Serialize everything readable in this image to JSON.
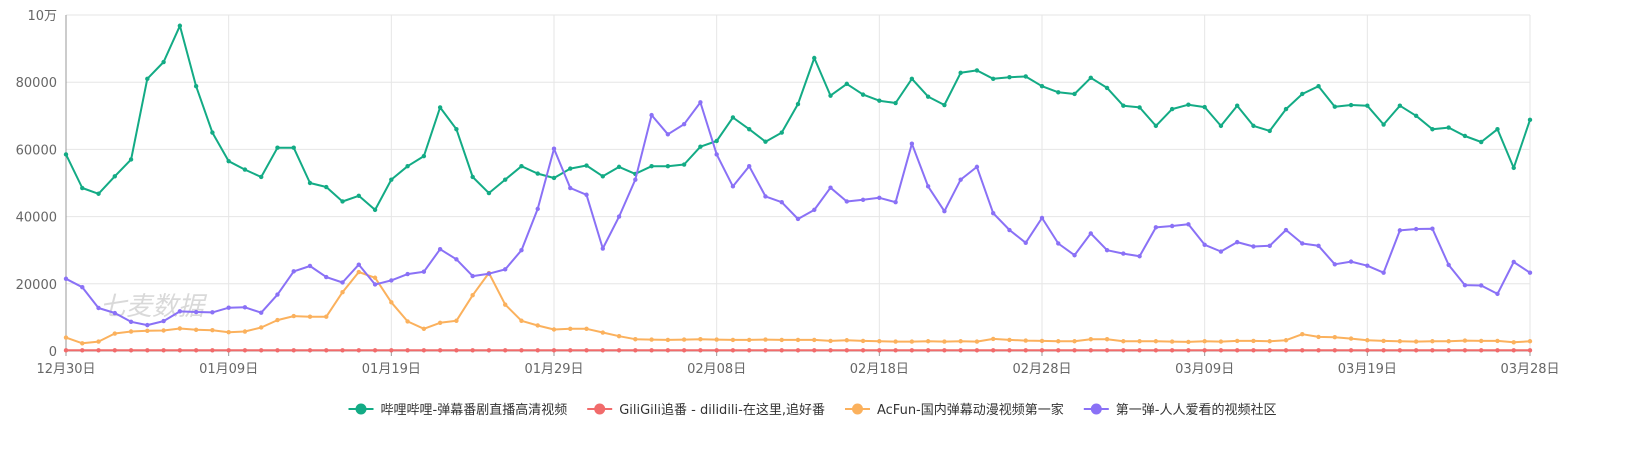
{
  "chart_data": {
    "type": "line",
    "ylim": [
      0,
      100000
    ],
    "y_ticks": [
      0,
      20000,
      40000,
      60000,
      80000
    ],
    "y_top_label": "10万",
    "x_tick_labels": [
      "12月30日",
      "01月09日",
      "01月19日",
      "01月29日",
      "02月08日",
      "02月18日",
      "02月28日",
      "03月09日",
      "03月19日",
      "03月28日"
    ],
    "grid": true,
    "legend_position": "bottom",
    "watermark": "七麦数据",
    "series": [
      {
        "name": "哔哩哔哩-弹幕番剧直播高清视频",
        "color": "#13ab85",
        "values": [
          58500,
          48500,
          46800,
          52000,
          57000,
          81000,
          86000,
          96800,
          78800,
          65000,
          56500,
          54000,
          51800,
          60500,
          60500,
          50000,
          48800,
          44500,
          46200,
          42000,
          51000,
          55000,
          58000,
          72500,
          66000,
          51800,
          47000,
          51000,
          55000,
          52800,
          51500,
          54300,
          55200,
          52000,
          54800,
          52700,
          55000,
          55000,
          55500,
          60800,
          62500,
          69500,
          66000,
          62300,
          65000,
          73500,
          87200,
          76000,
          79500,
          76300,
          74500,
          73800,
          81000,
          75700,
          73200,
          82800,
          83500,
          81000,
          81500,
          81700,
          78800,
          77000,
          76500,
          81300,
          78300,
          73000,
          72500,
          67000,
          72000,
          73300,
          72600,
          67000,
          73000,
          67000,
          65500,
          72000,
          76500,
          78800,
          72700,
          73200,
          73000,
          67400,
          73000,
          70000,
          66000,
          66500,
          64000,
          62200,
          66000,
          54500,
          68800
        ]
      },
      {
        "name": "GiliGili追番 - dilidili-在这里,追好番",
        "color": "#f16b6b",
        "values": [
          200,
          200,
          200,
          200,
          200,
          200,
          200,
          200,
          200,
          200,
          200,
          200,
          200,
          200,
          200,
          200,
          200,
          200,
          200,
          200,
          200,
          200,
          200,
          200,
          200,
          200,
          200,
          200,
          200,
          200,
          200,
          200,
          200,
          200,
          200,
          200,
          200,
          200,
          200,
          200,
          200,
          200,
          200,
          200,
          200,
          200,
          200,
          200,
          200,
          200,
          200,
          200,
          200,
          200,
          200,
          200,
          200,
          200,
          200,
          200,
          200,
          200,
          200,
          200,
          200,
          200,
          200,
          200,
          200,
          200,
          200,
          200,
          200,
          200,
          200,
          200,
          200,
          200,
          200,
          200,
          200,
          200,
          200,
          200,
          200,
          200,
          200,
          200,
          200,
          200,
          200
        ]
      },
      {
        "name": "AcFun-国内弹幕动漫视频第一家",
        "color": "#fbb15d",
        "values": [
          4000,
          2300,
          2800,
          5200,
          5800,
          6000,
          6100,
          6700,
          6300,
          6200,
          5600,
          5800,
          7000,
          9200,
          10400,
          10200,
          10200,
          17500,
          23500,
          21800,
          14500,
          8800,
          6600,
          8400,
          9000,
          16600,
          23200,
          13800,
          9000,
          7600,
          6400,
          6600,
          6600,
          5500,
          4400,
          3500,
          3400,
          3300,
          3400,
          3500,
          3400,
          3300,
          3300,
          3400,
          3300,
          3300,
          3300,
          3000,
          3200,
          3000,
          2900,
          2800,
          2800,
          2900,
          2800,
          2900,
          2800,
          3600,
          3300,
          3100,
          3000,
          2900,
          2900,
          3500,
          3500,
          2900,
          2900,
          2900,
          2800,
          2700,
          2900,
          2800,
          3000,
          3000,
          2900,
          3200,
          5000,
          4200,
          4100,
          3700,
          3200,
          3000,
          2900,
          2800,
          2900,
          2900,
          3100,
          3000,
          3000,
          2600,
          2900
        ]
      },
      {
        "name": "第一弹-人人爱看的视频社区",
        "color": "#8a71f6",
        "values": [
          21500,
          19000,
          12800,
          11300,
          8700,
          7700,
          8900,
          11800,
          11600,
          11500,
          12900,
          13000,
          11400,
          16800,
          23700,
          25300,
          22000,
          20400,
          25700,
          19800,
          21000,
          22900,
          23600,
          30300,
          27300,
          22300,
          23000,
          24300,
          30000,
          42300,
          60200,
          48500,
          46500,
          30500,
          40000,
          51000,
          70200,
          64500,
          67500,
          74000,
          58500,
          49000,
          55000,
          46000,
          44300,
          39300,
          42000,
          48600,
          44500,
          45000,
          45600,
          44300,
          61700,
          49000,
          41600,
          51000,
          54800,
          41000,
          36000,
          32200,
          39600,
          32000,
          28500,
          35000,
          30000,
          29000,
          28200,
          36800,
          37200,
          37700,
          31600,
          29600,
          32400,
          31100,
          31300,
          36000,
          32000,
          31300,
          25800,
          26600,
          25400,
          23300,
          35900,
          36300,
          36400,
          25600,
          19600,
          19500,
          17000,
          26500,
          23300
        ]
      }
    ]
  }
}
